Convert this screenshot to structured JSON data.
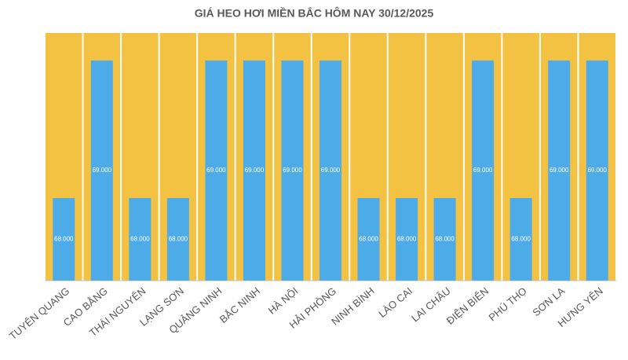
{
  "chart_data": {
    "type": "bar",
    "title": "GIÁ HEO HƠI MIỀN BẮC HÔM NAY 30/12/2025",
    "categories": [
      "TUYÊN QUANG",
      "CAO BẰNG",
      "THÁI NGUYÊN",
      "LẠNG SƠN",
      "QUẢNG NINH",
      "BẮC NINH",
      "HÀ NỘI",
      "HẢI PHÒNG",
      "NINH BÌNH",
      "LÀO CAI",
      "LAI CHÂU",
      "ĐIỆN BIÊN",
      "PHÚ THỌ",
      "SƠN LA",
      "HƯNG YÊN"
    ],
    "values": [
      68000,
      69000,
      68000,
      68000,
      69000,
      69000,
      69000,
      69000,
      68000,
      68000,
      68000,
      69000,
      68000,
      69000,
      69000
    ],
    "value_labels": [
      "68.000",
      "69.000",
      "68.000",
      "68.000",
      "69.000",
      "69.000",
      "69.000",
      "69.000",
      "68.000",
      "68.000",
      "68.000",
      "69.000",
      "68.000",
      "69.000",
      "69.000"
    ],
    "color": "#4dabe8",
    "band_color": "#f4c242",
    "ylim": [
      67400,
      69200
    ]
  }
}
